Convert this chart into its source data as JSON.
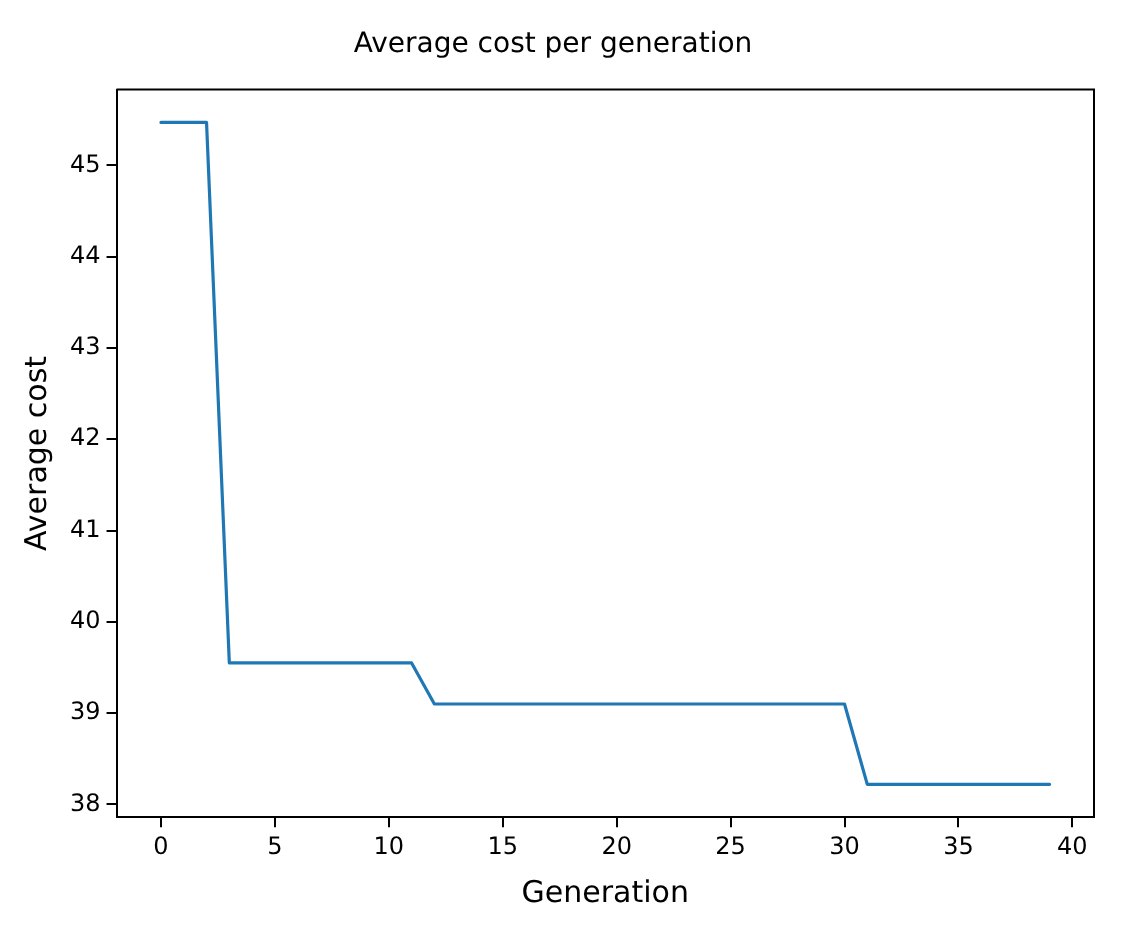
{
  "chart_data": {
    "type": "line",
    "title": "Average cost per generation",
    "xlabel": "Generation",
    "ylabel": "Average cost",
    "x": [
      0,
      1,
      2,
      3,
      4,
      5,
      6,
      7,
      8,
      9,
      10,
      11,
      12,
      13,
      14,
      15,
      16,
      17,
      18,
      19,
      20,
      21,
      22,
      23,
      24,
      25,
      26,
      27,
      28,
      29,
      30,
      31,
      32,
      33,
      34,
      35,
      36,
      37,
      38,
      39
    ],
    "series": [
      {
        "color": "#1f77b4",
        "values": [
          45.47,
          45.47,
          45.47,
          39.55,
          39.55,
          39.55,
          39.55,
          39.55,
          39.55,
          39.55,
          39.55,
          39.55,
          39.1,
          39.1,
          39.1,
          39.1,
          39.1,
          39.1,
          39.1,
          39.1,
          39.1,
          39.1,
          39.1,
          39.1,
          39.1,
          39.1,
          39.1,
          39.1,
          39.1,
          39.1,
          39.1,
          38.22,
          38.22,
          38.22,
          38.22,
          38.22,
          38.22,
          38.22,
          38.22,
          38.22
        ]
      }
    ],
    "xlim": [
      -1.95,
      40.95
    ],
    "ylim": [
      37.86,
      45.83
    ],
    "xticks": [
      0,
      5,
      10,
      15,
      20,
      25,
      30,
      35,
      40
    ],
    "yticks": [
      38,
      39,
      40,
      41,
      42,
      43,
      44,
      45
    ],
    "grid": false,
    "legend": false,
    "marker": "none",
    "line_style": "solid"
  }
}
